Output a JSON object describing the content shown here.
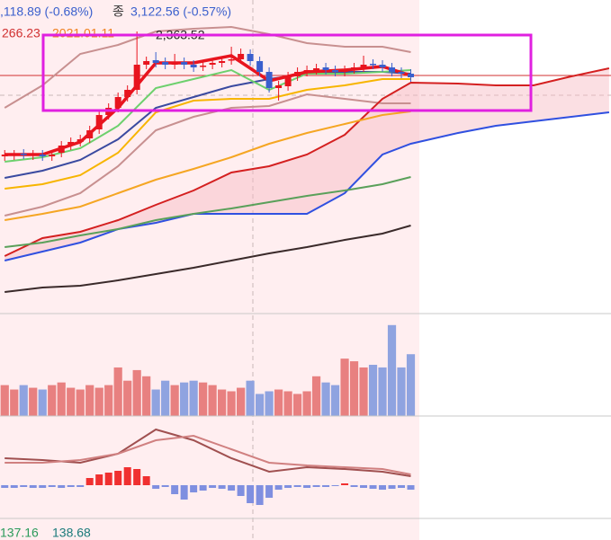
{
  "header": {
    "quote": ",118.89 (-0.68%)",
    "close_label": "종",
    "close": "3,122.56 (-0.57%)",
    "row2": [
      "266.23",
      "2021.01.11"
    ],
    "max_label": "2,363.52"
  },
  "chart_data": [
    {
      "type": "candlestick",
      "xlim": [
        -0.5,
        64.2
      ],
      "ylim": [
        0,
        350
      ],
      "up_color": "#e8141e",
      "down_color": "#3a5fcd",
      "x": [
        0,
        1,
        2,
        3,
        4,
        5,
        6,
        7,
        8,
        9,
        10,
        11,
        12,
        13,
        14,
        15,
        16,
        17,
        18,
        19,
        20,
        21,
        22,
        23,
        24,
        25,
        26,
        27,
        28,
        29,
        30,
        31,
        32,
        33,
        34,
        35,
        36,
        37,
        38,
        39,
        40,
        41,
        42,
        43
      ],
      "open": [
        176,
        177,
        179,
        177,
        178,
        176,
        180,
        188,
        192,
        196,
        206,
        222,
        230,
        242,
        250,
        278,
        283,
        281,
        278,
        281,
        278,
        276,
        278,
        280,
        283,
        284,
        290,
        282,
        270,
        252,
        254,
        265,
        270,
        272,
        275,
        272,
        270,
        273,
        275,
        279,
        278,
        275,
        270,
        268
      ],
      "high": [
        183,
        183,
        184,
        183,
        183,
        183,
        193,
        197,
        200,
        210,
        227,
        235,
        247,
        255,
        315,
        287,
        292,
        286,
        290,
        286,
        283,
        282,
        285,
        287,
        298,
        296,
        295,
        287,
        275,
        260,
        270,
        275,
        277,
        279,
        280,
        277,
        277,
        280,
        288,
        284,
        283,
        280,
        275,
        273
      ],
      "low": [
        171,
        172,
        173,
        172,
        171,
        171,
        175,
        183,
        187,
        191,
        201,
        217,
        225,
        237,
        245,
        273,
        275,
        273,
        273,
        273,
        270,
        271,
        273,
        275,
        278,
        279,
        277,
        265,
        247,
        238,
        249,
        260,
        265,
        267,
        267,
        265,
        265,
        268,
        270,
        273,
        270,
        265,
        263,
        259
      ],
      "close": [
        178,
        178,
        178,
        178,
        176,
        178,
        188,
        192,
        195,
        205,
        222,
        230,
        242,
        250,
        278,
        282,
        280,
        278,
        280,
        278,
        275,
        277,
        280,
        282,
        284,
        290,
        282,
        270,
        252,
        255,
        265,
        270,
        272,
        274,
        272,
        270,
        272,
        275,
        278,
        278,
        275,
        270,
        268,
        264
      ],
      "price_line": 266,
      "price_line_color": "#d03030",
      "lines": {
        "x": [
          0,
          4,
          8,
          12,
          16,
          20,
          24,
          28,
          32,
          36,
          40,
          43,
          48,
          52,
          56,
          60,
          64
        ],
        "series": [
          {
            "color": "#c89090",
            "values": [
              230,
              255,
              290,
              300,
              315,
              318,
              320,
              312,
              302,
              298,
              298,
              292,
              null,
              null,
              null,
              null,
              null
            ]
          },
          {
            "color": "#c89090",
            "values": [
              110,
              120,
              135,
              165,
              205,
              220,
              230,
              232,
              245,
              240,
              235,
              235,
              null,
              null,
              null,
              null,
              null
            ]
          },
          {
            "color": "#d42020",
            "values": [
              65,
              85,
              92,
              105,
              122,
              138,
              158,
              165,
              178,
              200,
              240,
              258,
              257,
              255,
              255,
              265,
              274
            ]
          },
          {
            "color": "#3050e0",
            "values": [
              60,
              70,
              80,
              95,
              102,
              112,
              112,
              112,
              112,
              135,
              178,
              190,
              202,
              210,
              215,
              220,
              225
            ]
          },
          {
            "color": "#3a2a2a",
            "values": [
              25,
              30,
              32,
              38,
              45,
              52,
              60,
              68,
              75,
              83,
              90,
              99,
              null,
              null,
              null,
              null,
              null
            ]
          },
          {
            "color": "#5aa05a",
            "values": [
              75,
              80,
              88,
              95,
              105,
              112,
              118,
              125,
              132,
              138,
              145,
              153,
              null,
              null,
              null,
              null,
              null
            ]
          },
          {
            "color": "#f5a623",
            "values": [
              105,
              112,
              120,
              135,
              150,
              162,
              175,
              190,
              202,
              212,
              222,
              226,
              null,
              null,
              null,
              null,
              null
            ]
          },
          {
            "color": "#f7b500",
            "values": [
              140,
              145,
              155,
              180,
              225,
              238,
              240,
              240,
              250,
              255,
              262,
              262,
              null,
              null,
              null,
              null,
              null
            ]
          },
          {
            "color": "#3a4aa0",
            "values": [
              152,
              160,
              172,
              195,
              230,
              242,
              254,
              262,
              268,
              270,
              270,
              268,
              null,
              null,
              null,
              null,
              null
            ]
          },
          {
            "color": "#6dd06d",
            "values": [
              170,
              175,
              185,
              210,
              252,
              262,
              272,
              250,
              268,
              268,
              270,
              272,
              null,
              null,
              null,
              null,
              null
            ]
          },
          {
            "color": "#e8141e",
            "values": [
              178,
              178,
              192,
              230,
              280,
              280,
              288,
              260,
              270,
              272,
              276,
              266,
              null,
              null,
              null,
              null,
              null
            ]
          }
        ]
      }
    },
    {
      "type": "bar",
      "ylim": [
        0,
        115
      ],
      "up_color": "#e88080",
      "down_color": "#8fa3e0",
      "values": [
        35,
        30,
        35,
        32,
        30,
        35,
        38,
        32,
        30,
        35,
        32,
        35,
        55,
        40,
        52,
        45,
        30,
        40,
        35,
        38,
        40,
        38,
        35,
        30,
        28,
        32,
        40,
        25,
        28,
        30,
        28,
        25,
        28,
        45,
        38,
        35,
        65,
        62,
        55,
        58,
        55,
        103,
        55,
        70
      ]
    },
    {
      "type": "macd",
      "ylim": [
        -30,
        70
      ],
      "pos_color": "#f03030",
      "neg_color": "#7f8fe0",
      "values": [
        -3,
        -3,
        -2,
        -3,
        -3,
        -2,
        -3,
        -2,
        -2,
        8,
        12,
        14,
        16,
        20,
        18,
        10,
        -4,
        -2,
        -10,
        -16,
        -8,
        -6,
        -3,
        -4,
        -6,
        -12,
        -20,
        -22,
        -14,
        -5,
        -3,
        -2,
        -3,
        -2,
        -2,
        -1,
        2,
        -2,
        -3,
        -4,
        -5,
        -4,
        -3,
        -5
      ],
      "lines": {
        "x": [
          0,
          4,
          8,
          12,
          16,
          20,
          24,
          28,
          32,
          36,
          40,
          43
        ],
        "series": [
          {
            "color": "#a05050",
            "values": [
              30,
              28,
              25,
              35,
              62,
              50,
              30,
              15,
              20,
              18,
              15,
              10
            ]
          },
          {
            "color": "#d08080",
            "values": [
              25,
              25,
              28,
              35,
              50,
              55,
              40,
              25,
              22,
              20,
              18,
              12
            ]
          }
        ]
      }
    }
  ],
  "indicator_labels": [
    {
      "text": "137.16",
      "color": "#2a9a5a"
    },
    {
      "text": "138.68",
      "color": "#1a7a7a"
    }
  ]
}
